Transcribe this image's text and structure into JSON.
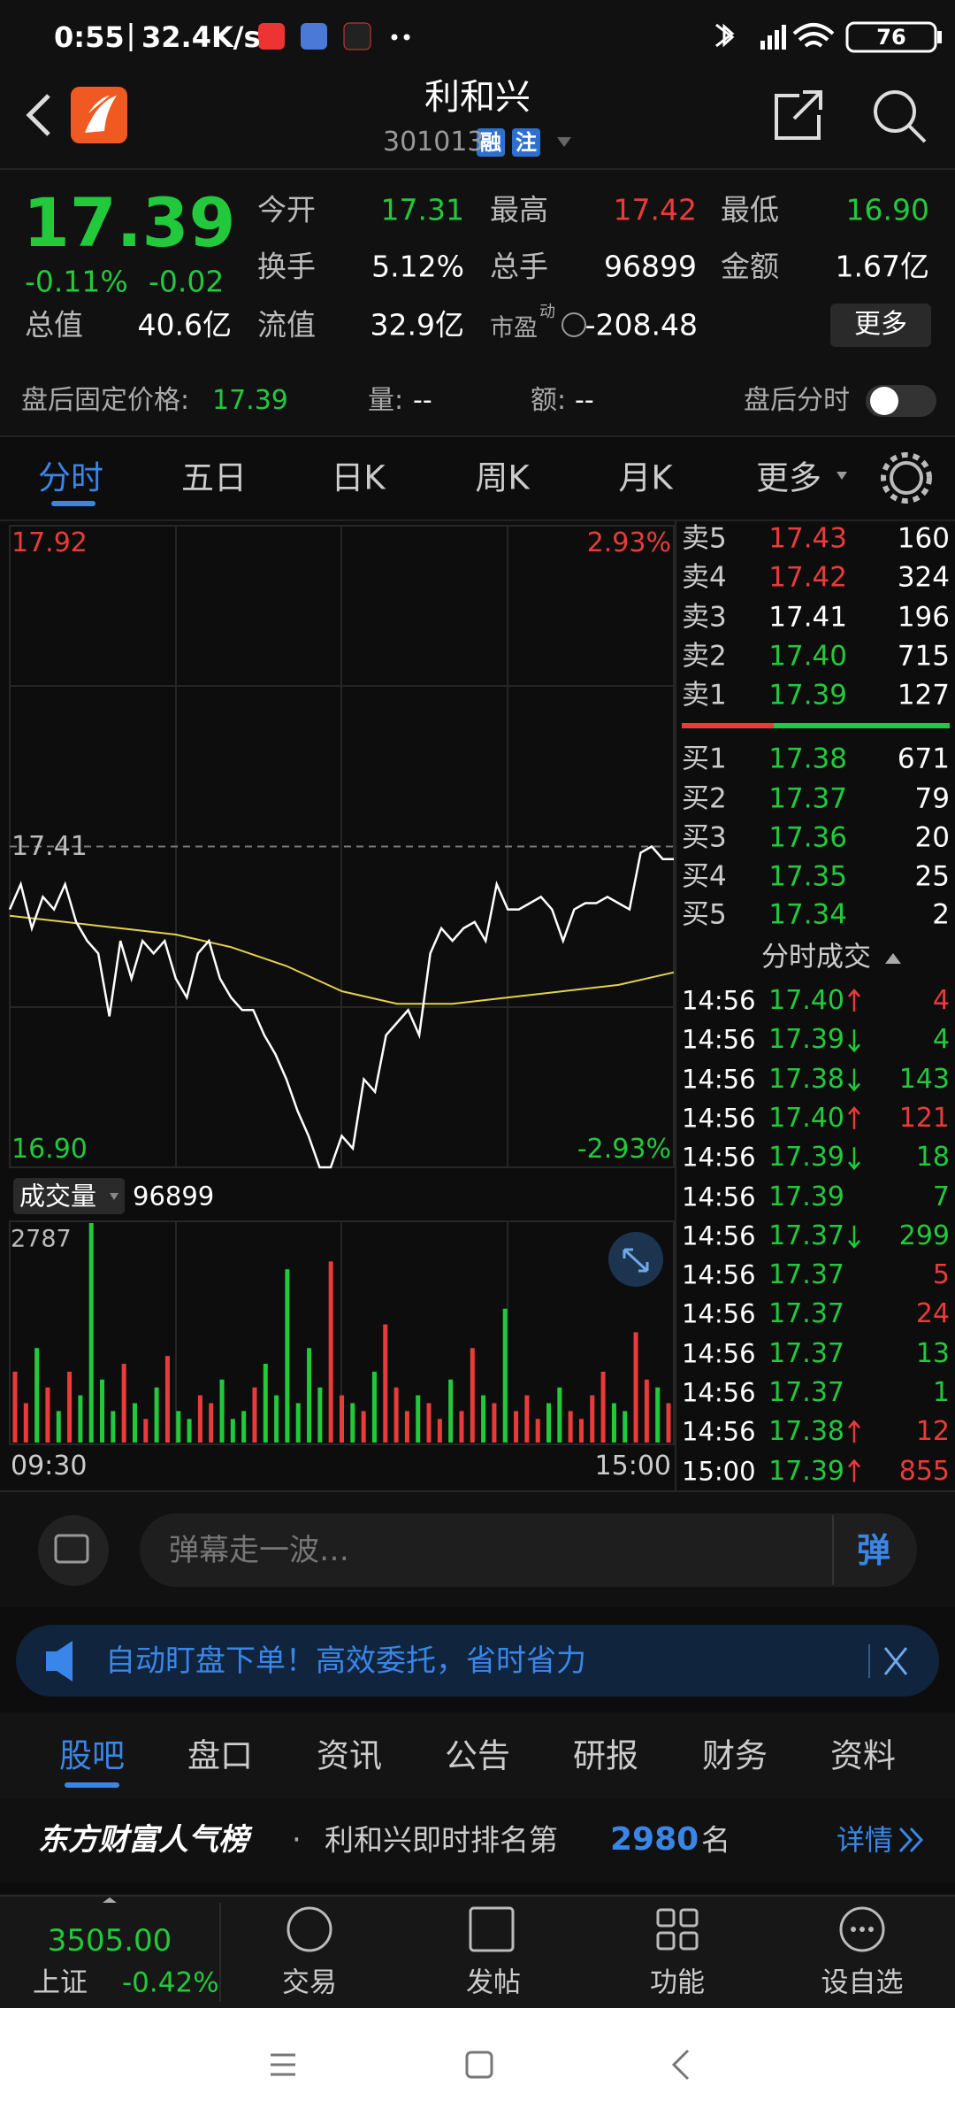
{
  "status_bar": {
    "time": "0:55",
    "speed": "32.4K/s",
    "battery": "76"
  },
  "header": {
    "title": "利和兴",
    "code": "301013",
    "tags": [
      "融",
      "注"
    ]
  },
  "quote": {
    "price": "17.39",
    "change_pct": "-0.11%",
    "change": "-0.02",
    "fields": [
      {
        "label": "今开",
        "value": "17.31",
        "tone": "down"
      },
      {
        "label": "最高",
        "value": "17.42",
        "tone": "up"
      },
      {
        "label": "最低",
        "value": "16.90",
        "tone": "down"
      },
      {
        "label": "换手",
        "value": "5.12%"
      },
      {
        "label": "总手",
        "value": "96899"
      },
      {
        "label": "金额",
        "value": "1.67亿"
      },
      {
        "label": "总值",
        "value": "40.6亿"
      },
      {
        "label": "流值",
        "value": "32.9亿"
      },
      {
        "label": "市盈",
        "sup": "动",
        "value": "-208.48"
      }
    ],
    "more": "更多"
  },
  "after_hours": {
    "label": "盘后固定价格:",
    "price": "17.39",
    "volume_label": "量:",
    "volume": "--",
    "amount_label": "额:",
    "amount": "--",
    "toggle_label": "盘后分时"
  },
  "tabs": {
    "items": [
      "分时",
      "五日",
      "日K",
      "周K",
      "月K",
      "更多"
    ],
    "active": 0
  },
  "chart": {
    "type": "line",
    "ylim": [
      16.9,
      17.92
    ],
    "yticks": [
      {
        "value": 16.9,
        "label": "16.90"
      },
      17.41,
      17.92
    ],
    "pct_ticks": [
      {
        "value": 16.9,
        "label": "-2.93%"
      },
      {
        "value": 17.92,
        "label": "2.93%"
      }
    ],
    "xticks": [
      "09:30",
      "15:00"
    ],
    "price": [
      17.31,
      17.35,
      17.28,
      17.33,
      17.31,
      17.35,
      17.29,
      17.26,
      17.24,
      17.14,
      17.26,
      17.2,
      17.26,
      17.24,
      17.26,
      17.2,
      17.17,
      17.24,
      17.26,
      17.2,
      17.17,
      17.15,
      17.15,
      17.11,
      17.08,
      17.04,
      16.99,
      16.95,
      16.9,
      16.9,
      16.95,
      16.93,
      17.04,
      17.02,
      17.11,
      17.13,
      17.15,
      17.11,
      17.24,
      17.28,
      17.26,
      17.28,
      17.29,
      17.26,
      17.35,
      17.31,
      17.31,
      17.32,
      17.33,
      17.31,
      17.26,
      17.31,
      17.32,
      17.32,
      17.33,
      17.32,
      17.31,
      17.4,
      17.41,
      17.39,
      17.39
    ],
    "average": [
      17.3,
      17.29,
      17.28,
      17.27,
      17.25,
      17.22,
      17.18,
      17.16,
      17.16,
      17.17,
      17.18,
      17.19,
      17.21
    ],
    "price_color": "#ffffff",
    "average_color": "#e3d24a"
  },
  "volume": {
    "type": "bar",
    "label": "成交量",
    "total": "96899",
    "ylim": [
      0,
      2787
    ],
    "yticks": [
      2787
    ],
    "values": [
      900,
      500,
      1200,
      700,
      400,
      900,
      600,
      2787,
      800,
      400,
      1000,
      500,
      300,
      700,
      1100,
      400,
      300,
      600,
      500,
      800,
      300,
      400,
      700,
      1000,
      600,
      2200,
      500,
      1200,
      700,
      2300,
      600,
      500,
      400,
      900,
      1500,
      700,
      400,
      600,
      500,
      300,
      800,
      400,
      1200,
      600,
      500,
      1700,
      400,
      600,
      300,
      500,
      700,
      400,
      300,
      600,
      900,
      500,
      400,
      1400,
      800,
      700,
      500
    ],
    "up_color": "#ea3b3b",
    "down_color": "#22c93c"
  },
  "order_book": {
    "asks": [
      {
        "label": "卖5",
        "price": "17.43",
        "volume": "160",
        "tone": "up"
      },
      {
        "label": "卖4",
        "price": "17.42",
        "volume": "324",
        "tone": "up"
      },
      {
        "label": "卖3",
        "price": "17.41",
        "volume": "196",
        "tone": "flat"
      },
      {
        "label": "卖2",
        "price": "17.40",
        "volume": "715",
        "tone": "down"
      },
      {
        "label": "卖1",
        "price": "17.39",
        "volume": "127",
        "tone": "down"
      }
    ],
    "bids": [
      {
        "label": "买1",
        "price": "17.38",
        "volume": "671",
        "tone": "down"
      },
      {
        "label": "买2",
        "price": "17.37",
        "volume": "79",
        "tone": "down"
      },
      {
        "label": "买3",
        "price": "17.36",
        "volume": "20",
        "tone": "down"
      },
      {
        "label": "买4",
        "price": "17.35",
        "volume": "25",
        "tone": "down"
      },
      {
        "label": "买5",
        "price": "17.34",
        "volume": "2",
        "tone": "down"
      }
    ]
  },
  "trades": {
    "title": "分时成交",
    "rows": [
      {
        "time": "14:56",
        "price": "17.40",
        "volume": "4",
        "side": "buy",
        "arrow": true
      },
      {
        "time": "14:56",
        "price": "17.39",
        "volume": "4",
        "side": "sell",
        "arrow": true
      },
      {
        "time": "14:56",
        "price": "17.38",
        "volume": "143",
        "side": "sell",
        "arrow": true
      },
      {
        "time": "14:56",
        "price": "17.40",
        "volume": "121",
        "side": "buy",
        "arrow": true
      },
      {
        "time": "14:56",
        "price": "17.39",
        "volume": "18",
        "side": "sell",
        "arrow": true
      },
      {
        "time": "14:56",
        "price": "17.39",
        "volume": "7",
        "side": "sell",
        "arrow": false
      },
      {
        "time": "14:56",
        "price": "17.37",
        "volume": "299",
        "side": "sell",
        "arrow": true
      },
      {
        "time": "14:56",
        "price": "17.37",
        "volume": "5",
        "side": "buy",
        "arrow": false
      },
      {
        "time": "14:56",
        "price": "17.37",
        "volume": "24",
        "side": "buy",
        "arrow": false
      },
      {
        "time": "14:56",
        "price": "17.37",
        "volume": "13",
        "side": "sell",
        "arrow": false
      },
      {
        "time": "14:56",
        "price": "17.37",
        "volume": "1",
        "side": "sell",
        "arrow": false
      },
      {
        "time": "14:56",
        "price": "17.38",
        "volume": "12",
        "side": "buy",
        "arrow": true
      },
      {
        "time": "15:00",
        "price": "17.39",
        "volume": "855",
        "side": "buy",
        "arrow": true
      }
    ]
  },
  "comment": {
    "placeholder": "弹幕走一波…",
    "button": "弹"
  },
  "banner": {
    "text": "自动盯盘下单！高效委托，省时省力"
  },
  "news_tabs": {
    "items": [
      "股吧",
      "盘口",
      "资讯",
      "公告",
      "研报",
      "财务",
      "资料"
    ],
    "active": 0
  },
  "ranking": {
    "brand": "东方财富人气榜",
    "separator": "·",
    "text": "利和兴即时排名第",
    "rank": "2980",
    "unit": "名",
    "link": "详情"
  },
  "bottom_nav": {
    "index": {
      "value": "3505.00",
      "name": "上证",
      "change": "-0.42%"
    },
    "items": [
      "交易",
      "发帖",
      "功能",
      "设自选"
    ]
  }
}
